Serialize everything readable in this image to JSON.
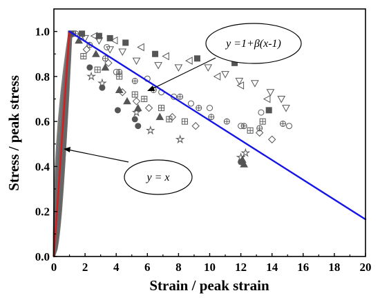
{
  "chart_data": {
    "type": "scatter",
    "title": "",
    "xlabel": "Strain / peak strain",
    "ylabel": "Stress / peak stress",
    "xlim": [
      0,
      20
    ],
    "ylim": [
      0,
      1.1
    ],
    "x_ticks": [
      "0",
      "2",
      "4",
      "6",
      "8",
      "10",
      "12",
      "14",
      "16",
      "18",
      "20"
    ],
    "y_ticks": [
      "0.0",
      "0.2",
      "0.4",
      "0.6",
      "0.8",
      "1.0"
    ],
    "grid": false,
    "legend": "none",
    "colors": {
      "ascending_line": "#e0191c",
      "descending_line": "#1414e6",
      "markers": "#555555",
      "ascending_band": "#666666"
    },
    "lines": [
      {
        "label": "y = x",
        "x": [
          0,
          1
        ],
        "y": [
          0,
          1
        ]
      },
      {
        "label": "y =1+β(x-1)",
        "x": [
          1,
          20
        ],
        "y": [
          1,
          0.165
        ]
      }
    ],
    "annotations": {
      "ascending_label": "y = x",
      "descending_label_main": "y =1+",
      "descending_label_beta": "β",
      "descending_label_tail": "(x-1)"
    },
    "series": [
      {
        "marker": "triangle-down-open",
        "points": [
          [
            1.2,
            0.99
          ],
          [
            2.0,
            0.97
          ],
          [
            2.9,
            0.96
          ],
          [
            3.6,
            0.92
          ],
          [
            4.4,
            0.91
          ],
          [
            5.3,
            0.87
          ],
          [
            6.7,
            0.85
          ],
          [
            8.0,
            0.84
          ],
          [
            9.9,
            0.84
          ],
          [
            11.0,
            0.81
          ],
          [
            11.9,
            0.78
          ],
          [
            12.9,
            0.77
          ],
          [
            13.9,
            0.73
          ],
          [
            14.6,
            0.7
          ],
          [
            14.9,
            0.66
          ]
        ]
      },
      {
        "marker": "circle-plus-open",
        "points": [
          [
            1.4,
            0.99
          ],
          [
            2.3,
            0.94
          ],
          [
            3.3,
            0.88
          ],
          [
            4.2,
            0.82
          ],
          [
            5.2,
            0.78
          ],
          [
            6.4,
            0.74
          ],
          [
            8.1,
            0.71
          ],
          [
            9.3,
            0.66
          ],
          [
            10.1,
            0.62
          ],
          [
            11.1,
            0.6
          ],
          [
            12.2,
            0.58
          ],
          [
            13.2,
            0.57
          ],
          [
            14.7,
            0.59
          ]
        ]
      },
      {
        "marker": "square-filled",
        "points": [
          [
            1.1,
            0.99
          ],
          [
            1.8,
            0.99
          ],
          [
            2.9,
            0.98
          ],
          [
            3.6,
            0.97
          ],
          [
            4.6,
            0.95
          ],
          [
            6.5,
            0.9
          ],
          [
            9.2,
            0.88
          ],
          [
            11.6,
            0.86
          ],
          [
            13.8,
            0.65
          ]
        ]
      },
      {
        "marker": "triangle-filled",
        "points": [
          [
            1.6,
            0.96
          ],
          [
            2.7,
            0.9
          ],
          [
            3.3,
            0.84
          ],
          [
            4.2,
            0.74
          ],
          [
            4.7,
            0.69
          ],
          [
            5.4,
            0.66
          ],
          [
            6.8,
            0.62
          ],
          [
            12.1,
            0.43
          ],
          [
            12.2,
            0.41
          ]
        ]
      },
      {
        "marker": "circle-filled",
        "points": [
          [
            2.3,
            0.84
          ],
          [
            3.1,
            0.75
          ],
          [
            4.1,
            0.65
          ],
          [
            5.2,
            0.61
          ],
          [
            5.4,
            0.58
          ],
          [
            12.0,
            0.42
          ]
        ]
      },
      {
        "marker": "triangle-left-open",
        "points": [
          [
            2.6,
            0.98
          ],
          [
            3.9,
            0.96
          ],
          [
            5.6,
            0.93
          ],
          [
            7.2,
            0.89
          ],
          [
            8.7,
            0.87
          ],
          [
            10.5,
            0.8
          ],
          [
            12.0,
            0.76
          ],
          [
            13.7,
            0.7
          ]
        ]
      },
      {
        "marker": "diamond-open",
        "points": [
          [
            2.1,
            0.92
          ],
          [
            3.5,
            0.86
          ],
          [
            4.4,
            0.73
          ],
          [
            5.3,
            0.69
          ],
          [
            6.1,
            0.66
          ],
          [
            7.6,
            0.62
          ],
          [
            9.1,
            0.58
          ],
          [
            13.2,
            0.55
          ],
          [
            14.0,
            0.52
          ]
        ]
      },
      {
        "marker": "square-plus-open",
        "points": [
          [
            1.9,
            0.89
          ],
          [
            2.8,
            0.83
          ],
          [
            4.2,
            0.8
          ],
          [
            5.2,
            0.72
          ],
          [
            5.8,
            0.7
          ],
          [
            6.9,
            0.66
          ],
          [
            7.4,
            0.61
          ],
          [
            8.4,
            0.6
          ],
          [
            12.6,
            0.56
          ],
          [
            13.4,
            0.6
          ]
        ]
      },
      {
        "marker": "circle-open",
        "points": [
          [
            1.7,
            0.98
          ],
          [
            3.4,
            0.93
          ],
          [
            4.0,
            0.82
          ],
          [
            6.0,
            0.79
          ],
          [
            6.9,
            0.73
          ],
          [
            7.7,
            0.71
          ],
          [
            8.8,
            0.68
          ],
          [
            10.0,
            0.66
          ],
          [
            12.0,
            0.58
          ],
          [
            13.3,
            0.64
          ],
          [
            15.1,
            0.58
          ]
        ]
      },
      {
        "marker": "star-open",
        "points": [
          [
            2.4,
            0.8
          ],
          [
            3.1,
            0.77
          ],
          [
            5.3,
            0.64
          ],
          [
            6.2,
            0.56
          ],
          [
            8.1,
            0.52
          ],
          [
            12.0,
            0.44
          ],
          [
            12.3,
            0.46
          ]
        ]
      }
    ]
  }
}
